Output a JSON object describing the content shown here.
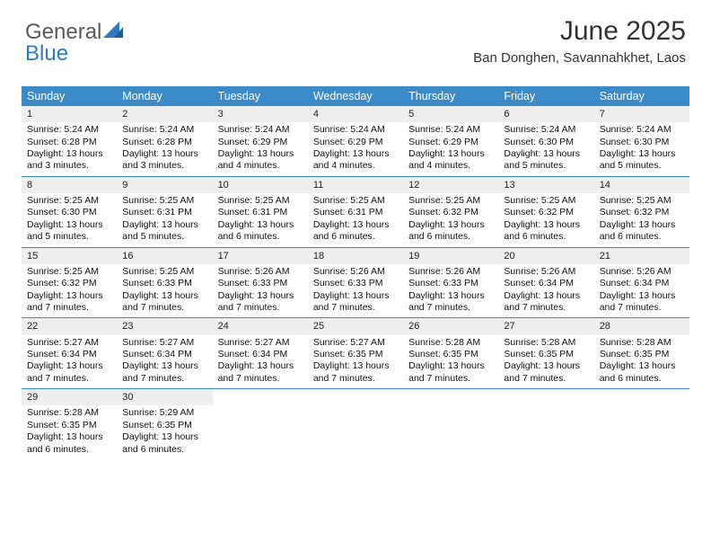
{
  "brand": {
    "part1": "General",
    "part2": "Blue"
  },
  "header": {
    "title": "June 2025",
    "location": "Ban Donghen, Savannahkhet, Laos"
  },
  "colors": {
    "header_bg": "#3b8bc8",
    "header_fg": "#ffffff",
    "daynum_bg": "#eeeeee",
    "rule": "#3b8bc8",
    "logo_gray": "#5a5a5a",
    "logo_blue": "#2e7bbf"
  },
  "daynames": [
    "Sunday",
    "Monday",
    "Tuesday",
    "Wednesday",
    "Thursday",
    "Friday",
    "Saturday"
  ],
  "weeks": [
    [
      {
        "n": "1",
        "sr": "Sunrise: 5:24 AM",
        "ss": "Sunset: 6:28 PM",
        "d1": "Daylight: 13 hours",
        "d2": "and 3 minutes."
      },
      {
        "n": "2",
        "sr": "Sunrise: 5:24 AM",
        "ss": "Sunset: 6:28 PM",
        "d1": "Daylight: 13 hours",
        "d2": "and 3 minutes."
      },
      {
        "n": "3",
        "sr": "Sunrise: 5:24 AM",
        "ss": "Sunset: 6:29 PM",
        "d1": "Daylight: 13 hours",
        "d2": "and 4 minutes."
      },
      {
        "n": "4",
        "sr": "Sunrise: 5:24 AM",
        "ss": "Sunset: 6:29 PM",
        "d1": "Daylight: 13 hours",
        "d2": "and 4 minutes."
      },
      {
        "n": "5",
        "sr": "Sunrise: 5:24 AM",
        "ss": "Sunset: 6:29 PM",
        "d1": "Daylight: 13 hours",
        "d2": "and 4 minutes."
      },
      {
        "n": "6",
        "sr": "Sunrise: 5:24 AM",
        "ss": "Sunset: 6:30 PM",
        "d1": "Daylight: 13 hours",
        "d2": "and 5 minutes."
      },
      {
        "n": "7",
        "sr": "Sunrise: 5:24 AM",
        "ss": "Sunset: 6:30 PM",
        "d1": "Daylight: 13 hours",
        "d2": "and 5 minutes."
      }
    ],
    [
      {
        "n": "8",
        "sr": "Sunrise: 5:25 AM",
        "ss": "Sunset: 6:30 PM",
        "d1": "Daylight: 13 hours",
        "d2": "and 5 minutes."
      },
      {
        "n": "9",
        "sr": "Sunrise: 5:25 AM",
        "ss": "Sunset: 6:31 PM",
        "d1": "Daylight: 13 hours",
        "d2": "and 5 minutes."
      },
      {
        "n": "10",
        "sr": "Sunrise: 5:25 AM",
        "ss": "Sunset: 6:31 PM",
        "d1": "Daylight: 13 hours",
        "d2": "and 6 minutes."
      },
      {
        "n": "11",
        "sr": "Sunrise: 5:25 AM",
        "ss": "Sunset: 6:31 PM",
        "d1": "Daylight: 13 hours",
        "d2": "and 6 minutes."
      },
      {
        "n": "12",
        "sr": "Sunrise: 5:25 AM",
        "ss": "Sunset: 6:32 PM",
        "d1": "Daylight: 13 hours",
        "d2": "and 6 minutes."
      },
      {
        "n": "13",
        "sr": "Sunrise: 5:25 AM",
        "ss": "Sunset: 6:32 PM",
        "d1": "Daylight: 13 hours",
        "d2": "and 6 minutes."
      },
      {
        "n": "14",
        "sr": "Sunrise: 5:25 AM",
        "ss": "Sunset: 6:32 PM",
        "d1": "Daylight: 13 hours",
        "d2": "and 6 minutes."
      }
    ],
    [
      {
        "n": "15",
        "sr": "Sunrise: 5:25 AM",
        "ss": "Sunset: 6:32 PM",
        "d1": "Daylight: 13 hours",
        "d2": "and 7 minutes."
      },
      {
        "n": "16",
        "sr": "Sunrise: 5:25 AM",
        "ss": "Sunset: 6:33 PM",
        "d1": "Daylight: 13 hours",
        "d2": "and 7 minutes."
      },
      {
        "n": "17",
        "sr": "Sunrise: 5:26 AM",
        "ss": "Sunset: 6:33 PM",
        "d1": "Daylight: 13 hours",
        "d2": "and 7 minutes."
      },
      {
        "n": "18",
        "sr": "Sunrise: 5:26 AM",
        "ss": "Sunset: 6:33 PM",
        "d1": "Daylight: 13 hours",
        "d2": "and 7 minutes."
      },
      {
        "n": "19",
        "sr": "Sunrise: 5:26 AM",
        "ss": "Sunset: 6:33 PM",
        "d1": "Daylight: 13 hours",
        "d2": "and 7 minutes."
      },
      {
        "n": "20",
        "sr": "Sunrise: 5:26 AM",
        "ss": "Sunset: 6:34 PM",
        "d1": "Daylight: 13 hours",
        "d2": "and 7 minutes."
      },
      {
        "n": "21",
        "sr": "Sunrise: 5:26 AM",
        "ss": "Sunset: 6:34 PM",
        "d1": "Daylight: 13 hours",
        "d2": "and 7 minutes."
      }
    ],
    [
      {
        "n": "22",
        "sr": "Sunrise: 5:27 AM",
        "ss": "Sunset: 6:34 PM",
        "d1": "Daylight: 13 hours",
        "d2": "and 7 minutes."
      },
      {
        "n": "23",
        "sr": "Sunrise: 5:27 AM",
        "ss": "Sunset: 6:34 PM",
        "d1": "Daylight: 13 hours",
        "d2": "and 7 minutes."
      },
      {
        "n": "24",
        "sr": "Sunrise: 5:27 AM",
        "ss": "Sunset: 6:34 PM",
        "d1": "Daylight: 13 hours",
        "d2": "and 7 minutes."
      },
      {
        "n": "25",
        "sr": "Sunrise: 5:27 AM",
        "ss": "Sunset: 6:35 PM",
        "d1": "Daylight: 13 hours",
        "d2": "and 7 minutes."
      },
      {
        "n": "26",
        "sr": "Sunrise: 5:28 AM",
        "ss": "Sunset: 6:35 PM",
        "d1": "Daylight: 13 hours",
        "d2": "and 7 minutes."
      },
      {
        "n": "27",
        "sr": "Sunrise: 5:28 AM",
        "ss": "Sunset: 6:35 PM",
        "d1": "Daylight: 13 hours",
        "d2": "and 7 minutes."
      },
      {
        "n": "28",
        "sr": "Sunrise: 5:28 AM",
        "ss": "Sunset: 6:35 PM",
        "d1": "Daylight: 13 hours",
        "d2": "and 6 minutes."
      }
    ],
    [
      {
        "n": "29",
        "sr": "Sunrise: 5:28 AM",
        "ss": "Sunset: 6:35 PM",
        "d1": "Daylight: 13 hours",
        "d2": "and 6 minutes."
      },
      {
        "n": "30",
        "sr": "Sunrise: 5:29 AM",
        "ss": "Sunset: 6:35 PM",
        "d1": "Daylight: 13 hours",
        "d2": "and 6 minutes."
      },
      null,
      null,
      null,
      null,
      null
    ]
  ]
}
